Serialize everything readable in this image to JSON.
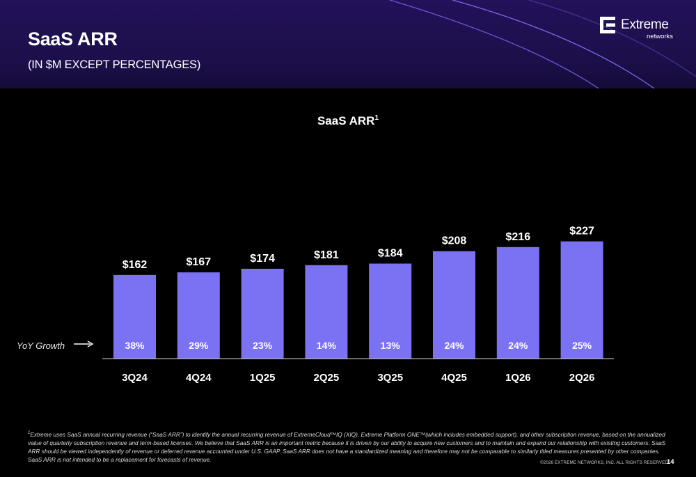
{
  "header": {
    "title": "SaaS ARR",
    "subtitle": "(IN $M EXCEPT PERCENTAGES)",
    "logo_name": "Extreme",
    "logo_sub": "networks"
  },
  "chart_data": {
    "type": "bar",
    "title": "SaaS ARR",
    "title_superscript": "1",
    "categories": [
      "3Q24",
      "4Q24",
      "1Q25",
      "2Q25",
      "3Q25",
      "4Q25",
      "1Q26",
      "2Q26"
    ],
    "values": [
      162,
      167,
      174,
      181,
      184,
      208,
      216,
      227
    ],
    "value_labels": [
      "$162",
      "$167",
      "$174",
      "$181",
      "$184",
      "$208",
      "$216",
      "$227"
    ],
    "yoy_growth": [
      "38%",
      "29%",
      "23%",
      "14%",
      "13%",
      "24%",
      "24%",
      "25%"
    ],
    "yoy_label": "YoY Growth",
    "bar_color": "#7b72f3",
    "grid": false
  },
  "footnote": {
    "marker": "1",
    "text": "Extreme uses SaaS annual recurring revenue (“SaaS ARR”) to identify the annual recurring revenue of ExtremeCloud™IQ (XIQ), Extreme Platform ONE™(which includes embedded support), and other subscription revenue, based on the annualized value of quarterly subscription revenue and term-based licenses. We believe that SaaS ARR is an important metric because it is driven by our ability to acquire new customers and to maintain and expand our relationship with existing customers. SaaS ARR should be viewed independently of revenue  or deferred revenue accounted under U.S. GAAP. SaaS ARR does not have a standardized meaning and therefore may not be comparable to similarly titled measures presented by other companies. SaaS ARR is not intended to be a replacement for forecasts of revenue."
  },
  "copyright": "©2026 EXTREME NETWORKS, INC. ALL RIGHTS RESERVED.",
  "page_number": "14"
}
